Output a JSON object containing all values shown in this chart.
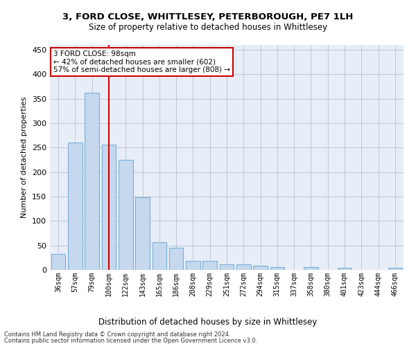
{
  "title": "3, FORD CLOSE, WHITTLESEY, PETERBOROUGH, PE7 1LH",
  "subtitle": "Size of property relative to detached houses in Whittlesey",
  "xlabel": "Distribution of detached houses by size in Whittlesey",
  "ylabel": "Number of detached properties",
  "footnote1": "Contains HM Land Registry data © Crown copyright and database right 2024.",
  "footnote2": "Contains public sector information licensed under the Open Government Licence v3.0.",
  "bar_labels": [
    "36sqm",
    "57sqm",
    "79sqm",
    "100sqm",
    "122sqm",
    "143sqm",
    "165sqm",
    "186sqm",
    "208sqm",
    "229sqm",
    "251sqm",
    "272sqm",
    "294sqm",
    "315sqm",
    "337sqm",
    "358sqm",
    "380sqm",
    "401sqm",
    "423sqm",
    "444sqm",
    "466sqm"
  ],
  "bar_values": [
    32,
    260,
    362,
    256,
    225,
    148,
    57,
    45,
    18,
    18,
    11,
    11,
    8,
    6,
    0,
    6,
    0,
    4,
    0,
    0,
    4
  ],
  "bar_color": "#c5d8ed",
  "bar_edge_color": "#7aafd4",
  "background_color": "#e8eef8",
  "grid_color": "#b0b8cc",
  "property_line_x": 3.0,
  "annotation_text1": "3 FORD CLOSE: 98sqm",
  "annotation_text2": "← 42% of detached houses are smaller (602)",
  "annotation_text3": "57% of semi-detached houses are larger (808) →",
  "annotation_box_color": "#ffffff",
  "annotation_box_edge": "#cc0000",
  "vline_color": "#cc0000",
  "ylim": [
    0,
    460
  ],
  "yticks": [
    0,
    50,
    100,
    150,
    200,
    250,
    300,
    350,
    400,
    450
  ]
}
